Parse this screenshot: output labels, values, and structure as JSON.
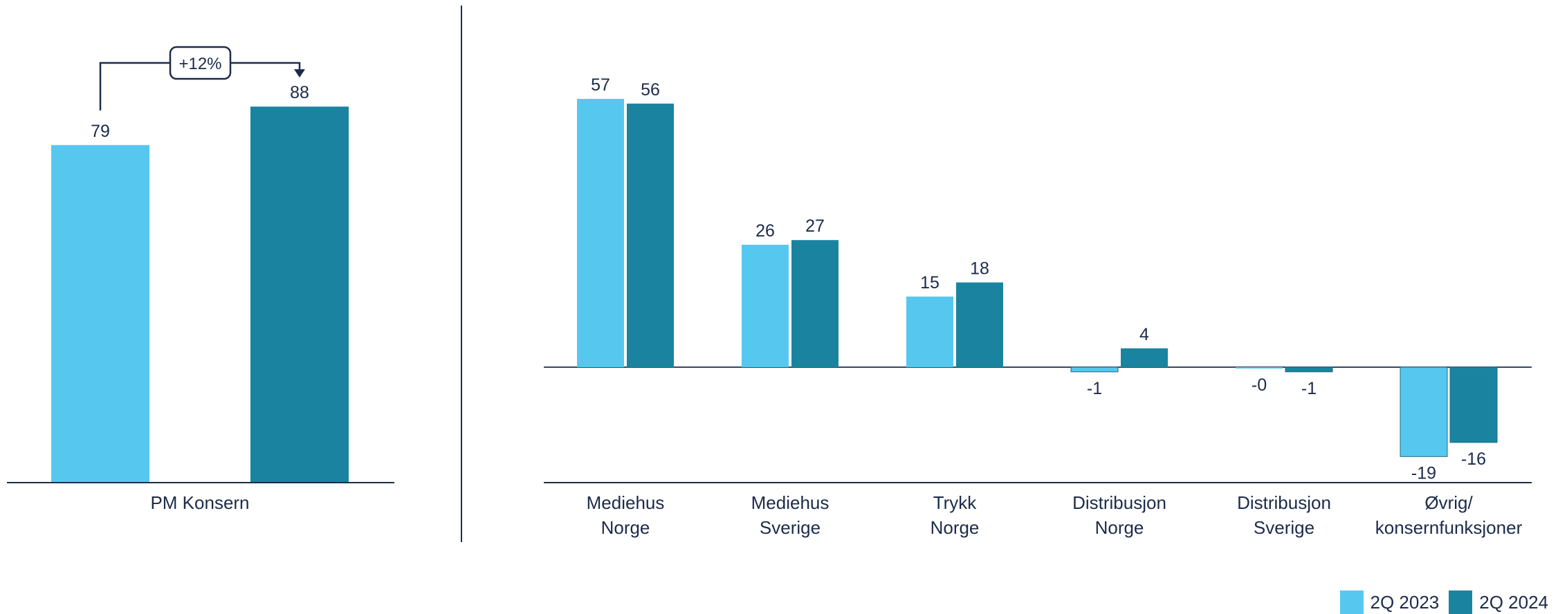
{
  "colors": {
    "series_2023": "#56c8ef",
    "series_2024": "#1a84a0",
    "axis": "#1c2b4a",
    "text": "#1c2b4a"
  },
  "chart_data": [
    {
      "type": "bar",
      "categories": [
        "PM Konsern"
      ],
      "series": [
        {
          "name": "2Q 2023",
          "values": [
            79
          ]
        },
        {
          "name": "2Q 2024",
          "values": [
            88
          ]
        }
      ],
      "annotation": "+12%",
      "ylim": [
        0,
        100
      ]
    },
    {
      "type": "bar",
      "categories": [
        "Mediehus Norge",
        "Mediehus Sverige",
        "Trykk Norge",
        "Distribusjon Norge",
        "Distribusjon Sverige",
        "Øvrig/ konsernfunksjoner"
      ],
      "category_lines": [
        [
          "Mediehus",
          "Norge"
        ],
        [
          "Mediehus",
          "Sverige"
        ],
        [
          "Trykk",
          "Norge"
        ],
        [
          "Distribusjon",
          "Norge"
        ],
        [
          "Distribusjon",
          "Sverige"
        ],
        [
          "Øvrig/",
          "konsernfunksjoner"
        ]
      ],
      "series": [
        {
          "name": "2Q 2023",
          "values": [
            57,
            26,
            15,
            -1,
            0,
            -19
          ],
          "labels": [
            "57",
            "26",
            "15",
            "-1",
            "-0",
            "-19"
          ]
        },
        {
          "name": "2Q 2024",
          "values": [
            56,
            27,
            18,
            4,
            -1,
            -16
          ],
          "labels": [
            "56",
            "27",
            "18",
            "4",
            "-1",
            "-16"
          ]
        }
      ],
      "ylim": [
        -25,
        60
      ]
    }
  ],
  "legend": {
    "items": [
      "2Q 2023",
      "2Q 2024"
    ]
  }
}
